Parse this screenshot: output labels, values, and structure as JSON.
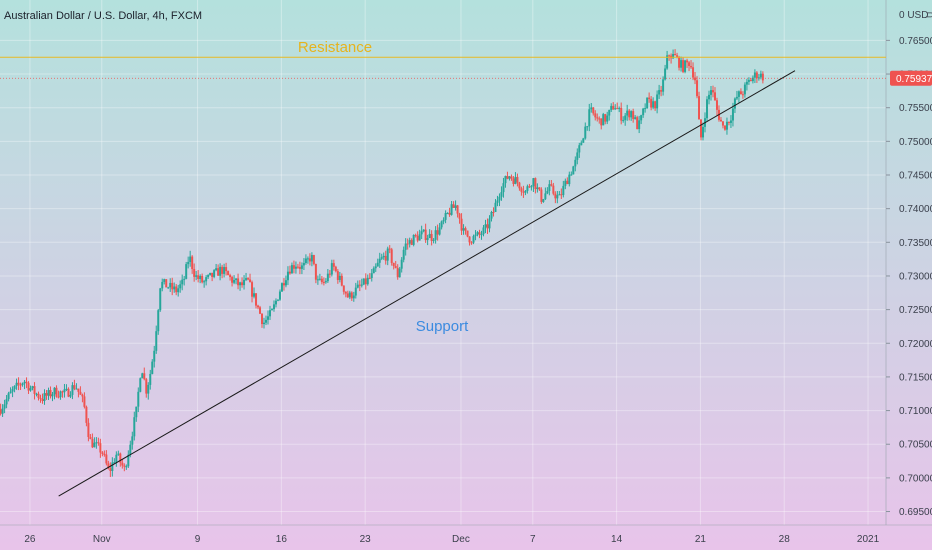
{
  "chart_data": {
    "type": "candlestick",
    "title": "Australian Dollar / U.S. Dollar, 4h, FXCM",
    "currency_label": "0 USD",
    "currency_suffix": "⊃",
    "last_price_label": "0.75937",
    "last_price": 0.75937,
    "ylim": [
      0.693,
      0.771
    ],
    "y_ticks": [
      "0.76500",
      "0.76000",
      "0.75500",
      "0.75000",
      "0.74500",
      "0.74000",
      "0.73500",
      "0.73000",
      "0.72500",
      "0.72000",
      "0.71500",
      "0.71000",
      "0.70500",
      "0.70000",
      "0.69500"
    ],
    "x_ticks": [
      {
        "label": "26",
        "day": -6
      },
      {
        "label": "Nov",
        "day": 0
      },
      {
        "label": "9",
        "day": 8
      },
      {
        "label": "16",
        "day": 15
      },
      {
        "label": "23",
        "day": 22
      },
      {
        "label": "Dec",
        "day": 30
      },
      {
        "label": "7",
        "day": 36
      },
      {
        "label": "14",
        "day": 43
      },
      {
        "label": "21",
        "day": 50
      },
      {
        "label": "28",
        "day": 57
      },
      {
        "label": "2021",
        "day": 64
      }
    ],
    "x_range_days": [
      -8.5,
      65.5
    ],
    "price_path": [
      [
        -8.5,
        0.7102
      ],
      [
        -7.5,
        0.7128
      ],
      [
        -6.5,
        0.7145
      ],
      [
        -5.8,
        0.713
      ],
      [
        -5.0,
        0.7118
      ],
      [
        -4.0,
        0.7128
      ],
      [
        -3.0,
        0.7125
      ],
      [
        -2.2,
        0.7138
      ],
      [
        -1.5,
        0.711
      ],
      [
        -1.0,
        0.7055
      ],
      [
        0.0,
        0.704
      ],
      [
        0.6,
        0.7008
      ],
      [
        1.2,
        0.7035
      ],
      [
        1.9,
        0.7012
      ],
      [
        2.4,
        0.7055
      ],
      [
        2.9,
        0.71
      ],
      [
        3.3,
        0.717
      ],
      [
        3.7,
        0.713
      ],
      [
        4.0,
        0.715
      ],
      [
        4.4,
        0.7195
      ],
      [
        4.9,
        0.729
      ],
      [
        5.5,
        0.7285
      ],
      [
        6.2,
        0.7278
      ],
      [
        6.8,
        0.729
      ],
      [
        7.3,
        0.733
      ],
      [
        7.8,
        0.73
      ],
      [
        8.5,
        0.729
      ],
      [
        9.2,
        0.73
      ],
      [
        10.0,
        0.731
      ],
      [
        10.8,
        0.7295
      ],
      [
        11.6,
        0.7285
      ],
      [
        12.2,
        0.7292
      ],
      [
        12.9,
        0.726
      ],
      [
        13.5,
        0.723
      ],
      [
        14.2,
        0.7245
      ],
      [
        15.0,
        0.7285
      ],
      [
        15.6,
        0.731
      ],
      [
        16.2,
        0.7318
      ],
      [
        16.8,
        0.7312
      ],
      [
        17.5,
        0.733
      ],
      [
        18.0,
        0.729
      ],
      [
        18.6,
        0.729
      ],
      [
        19.3,
        0.7315
      ],
      [
        20.0,
        0.729
      ],
      [
        20.6,
        0.7268
      ],
      [
        21.3,
        0.728
      ],
      [
        22.0,
        0.729
      ],
      [
        22.6,
        0.73
      ],
      [
        23.2,
        0.7322
      ],
      [
        24.0,
        0.7335
      ],
      [
        24.7,
        0.73
      ],
      [
        25.3,
        0.7345
      ],
      [
        26.0,
        0.7355
      ],
      [
        26.8,
        0.7362
      ],
      [
        27.6,
        0.7358
      ],
      [
        28.3,
        0.7372
      ],
      [
        29.0,
        0.7395
      ],
      [
        29.6,
        0.7405
      ],
      [
        30.2,
        0.7365
      ],
      [
        30.8,
        0.7355
      ],
      [
        31.5,
        0.736
      ],
      [
        32.1,
        0.737
      ],
      [
        32.7,
        0.7395
      ],
      [
        33.3,
        0.743
      ],
      [
        34.0,
        0.745
      ],
      [
        34.7,
        0.744
      ],
      [
        35.4,
        0.7425
      ],
      [
        36.0,
        0.7445
      ],
      [
        36.7,
        0.7415
      ],
      [
        37.4,
        0.743
      ],
      [
        38.2,
        0.7415
      ],
      [
        38.9,
        0.7445
      ],
      [
        39.6,
        0.747
      ],
      [
        40.2,
        0.751
      ],
      [
        40.8,
        0.7545
      ],
      [
        41.5,
        0.753
      ],
      [
        42.2,
        0.7535
      ],
      [
        42.8,
        0.7555
      ],
      [
        43.5,
        0.7535
      ],
      [
        44.2,
        0.7545
      ],
      [
        44.8,
        0.752
      ],
      [
        45.5,
        0.7558
      ],
      [
        46.2,
        0.7555
      ],
      [
        46.8,
        0.758
      ],
      [
        47.3,
        0.763
      ],
      [
        47.9,
        0.7625
      ],
      [
        48.5,
        0.761
      ],
      [
        49.1,
        0.7618
      ],
      [
        49.6,
        0.759
      ],
      [
        50.0,
        0.75
      ],
      [
        50.5,
        0.7555
      ],
      [
        50.9,
        0.758
      ],
      [
        51.4,
        0.7545
      ],
      [
        51.9,
        0.752
      ],
      [
        52.5,
        0.7535
      ],
      [
        53.0,
        0.7565
      ],
      [
        53.6,
        0.7575
      ],
      [
        54.1,
        0.759
      ],
      [
        54.7,
        0.76
      ],
      [
        55.3,
        0.7596
      ]
    ],
    "support_line": {
      "label": "Support",
      "from": [
        -3.6,
        0.6973
      ],
      "to": [
        57.9,
        0.7605
      ],
      "color": "#1a1a1a"
    },
    "resistance_line": {
      "label": "Resistance",
      "value": 0.7625,
      "color": "#e8b923",
      "label_color": "#e6b31e"
    },
    "support_label_color": "#3b8be0",
    "up_color": "#26a69a",
    "down_color": "#ef5350",
    "price_line_color": "#ef5350",
    "grid": true,
    "background": {
      "top": "#b4e1dd",
      "bottom": "#e8c4ea"
    }
  }
}
